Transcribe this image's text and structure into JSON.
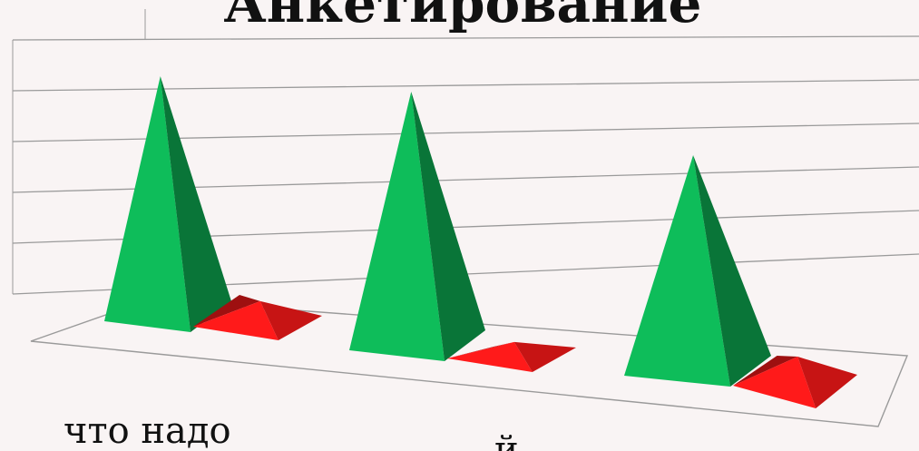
{
  "chart_data": {
    "type": "bar",
    "bar_shape": "pyramid-3d",
    "title": "Анкетирование",
    "categories": [
      "что надо",
      "",
      ""
    ],
    "series": [
      {
        "color": "#0ebd5a",
        "values": [
          0.92,
          0.97,
          0.83
        ]
      },
      {
        "color": "#ff1a1a",
        "values": [
          0.16,
          0.08,
          0.19
        ]
      }
    ],
    "ylim": [
      0,
      1
    ],
    "grid": true,
    "legend": "none",
    "axis_ticks": "none",
    "partial_label": "й"
  },
  "colors": {
    "background": "#f9f4f4",
    "grid_line": "#9a9a9a",
    "text": "#111111"
  }
}
